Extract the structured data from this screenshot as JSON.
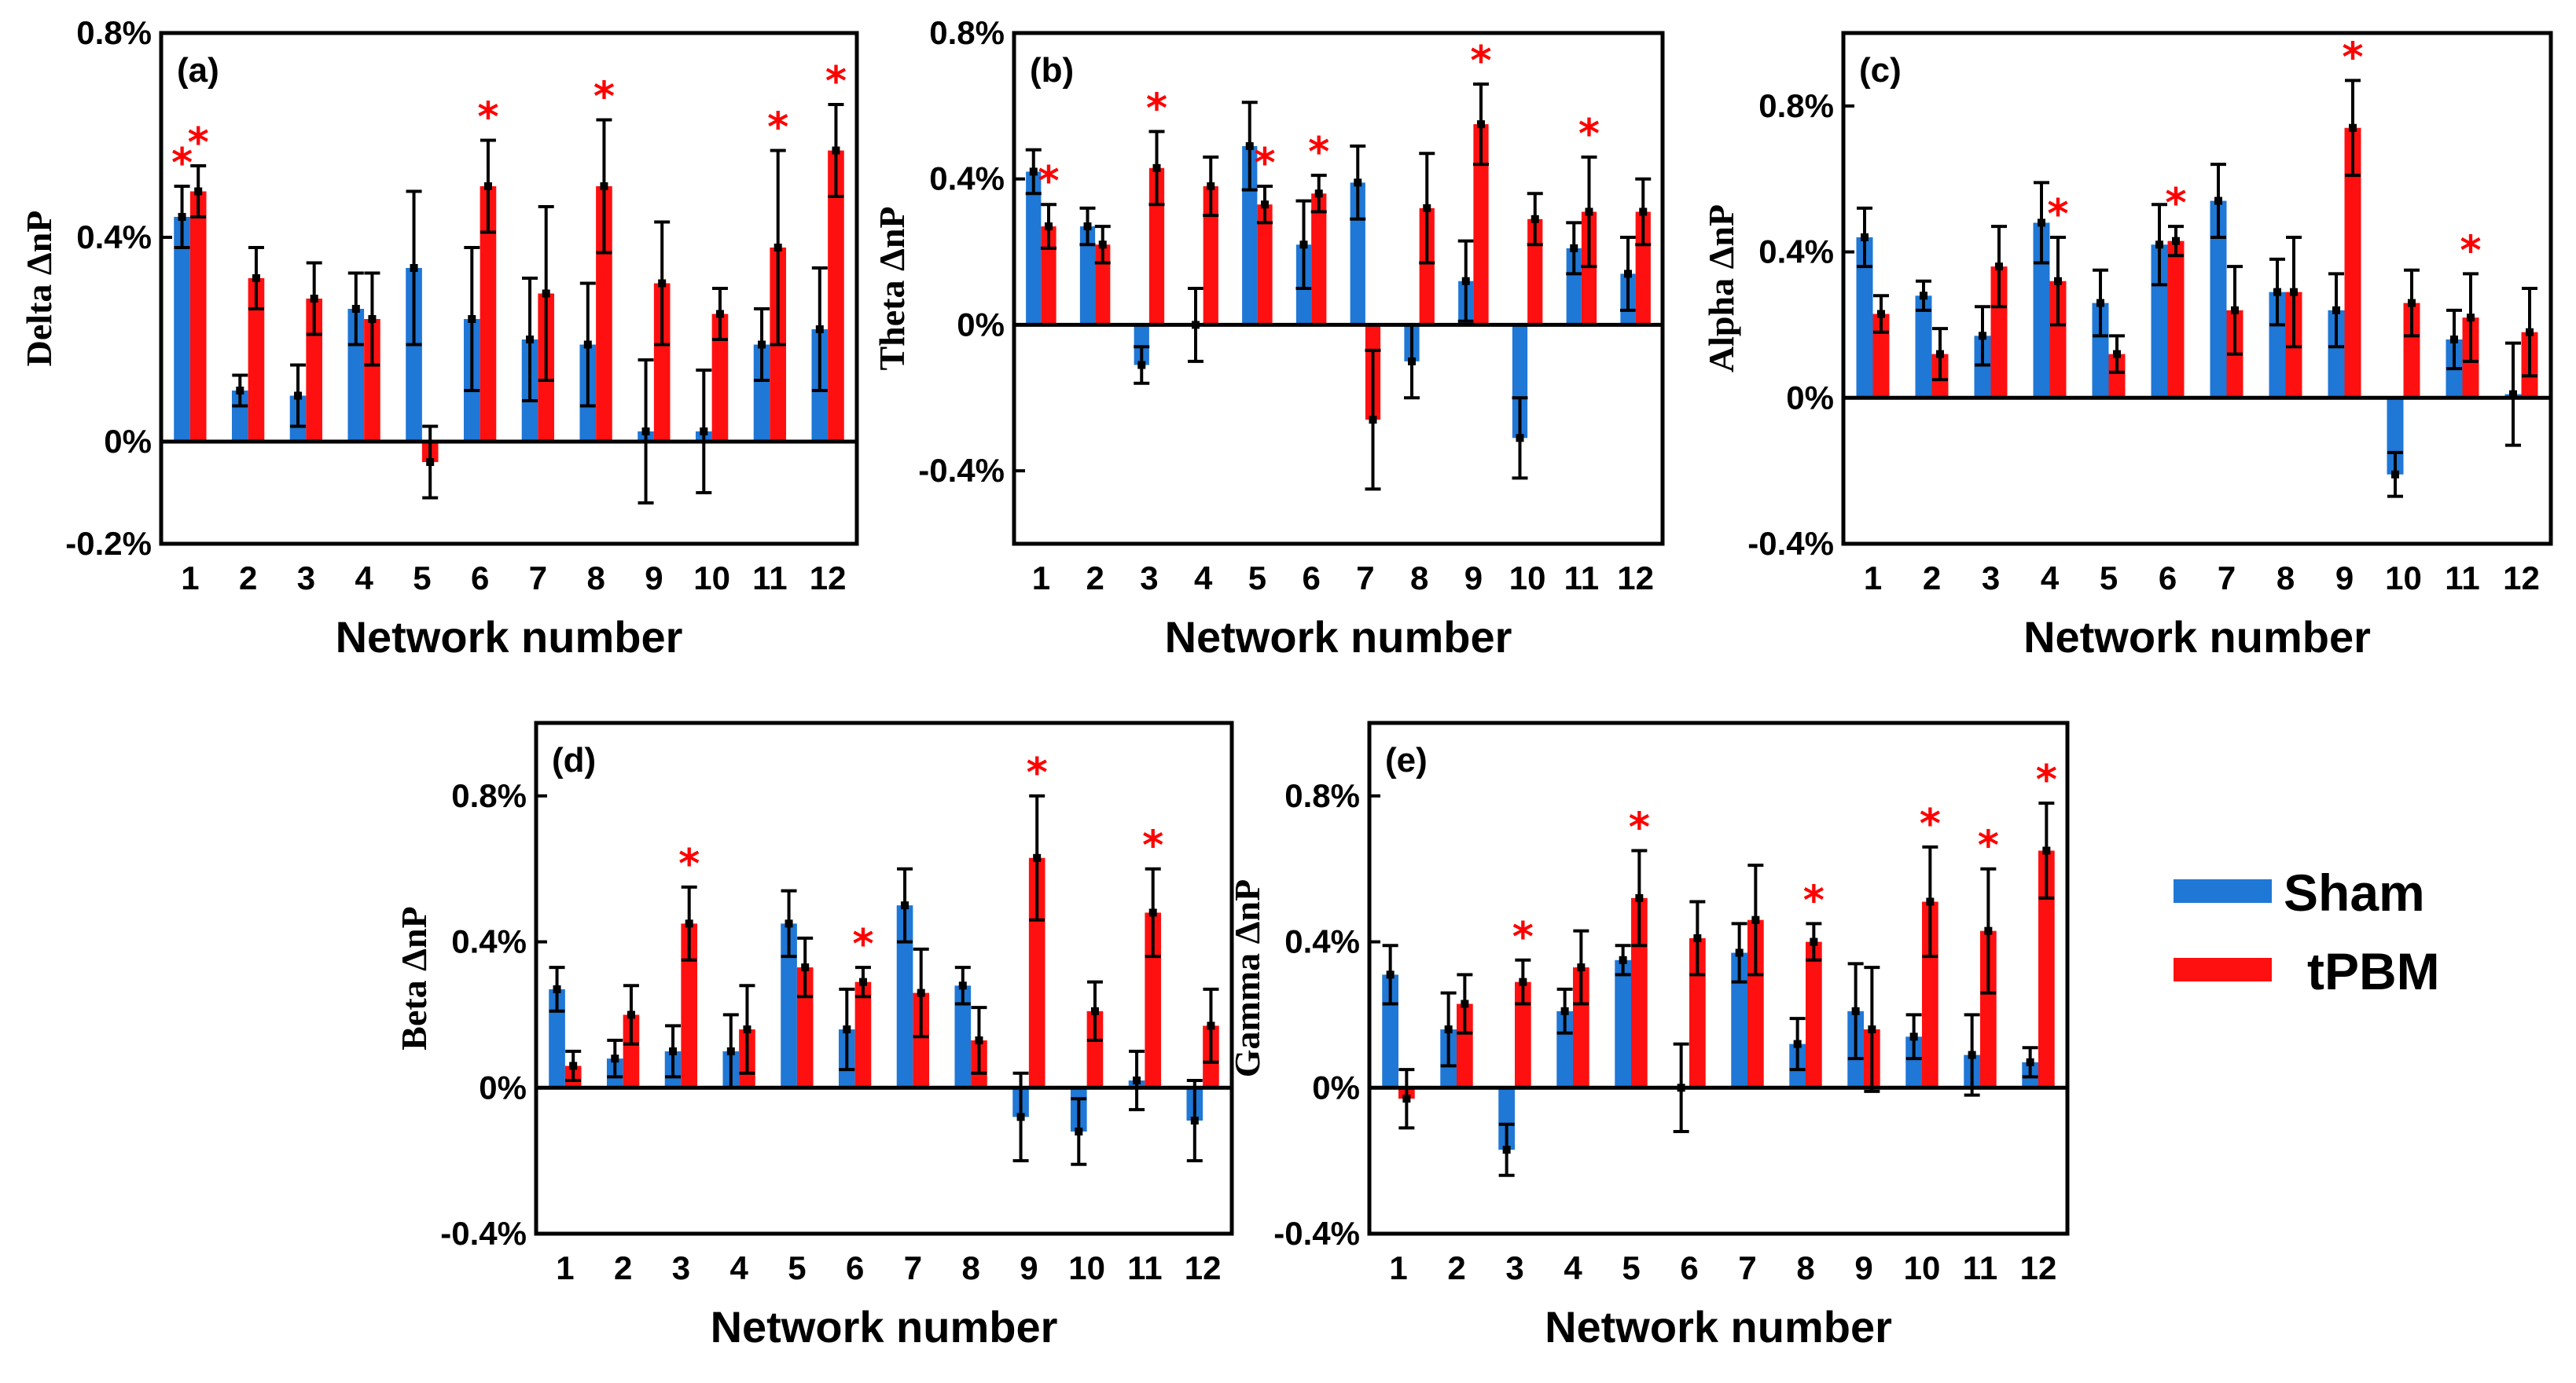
{
  "legend": {
    "items": [
      {
        "label": "Sham",
        "color": "#1f77d6"
      },
      {
        "label": "tPBM",
        "color": "#ff1010"
      }
    ]
  },
  "chart_data": [
    {
      "type": "bar",
      "panel_label": "(a)",
      "xlabel": "Network number",
      "ylabel": "Delta ΔnP",
      "ylim": [
        -0.2,
        0.8
      ],
      "yticks": [
        -0.2,
        0,
        0.4,
        0.8
      ],
      "ytick_labels": [
        "-0.2%",
        "0%",
        "0.4%",
        "0.8%"
      ],
      "categories": [
        "1",
        "2",
        "3",
        "4",
        "5",
        "6",
        "7",
        "8",
        "9",
        "10",
        "11",
        "12"
      ],
      "series": [
        {
          "name": "Sham",
          "values": [
            0.44,
            0.1,
            0.09,
            0.26,
            0.34,
            0.24,
            0.2,
            0.19,
            0.02,
            0.02,
            0.19,
            0.22
          ],
          "errors": [
            0.06,
            0.03,
            0.06,
            0.07,
            0.15,
            0.14,
            0.12,
            0.12,
            0.14,
            0.12,
            0.07,
            0.12
          ]
        },
        {
          "name": "tPBM",
          "values": [
            0.49,
            0.32,
            0.28,
            0.24,
            -0.04,
            0.5,
            0.29,
            0.5,
            0.31,
            0.25,
            0.38,
            0.57
          ],
          "errors": [
            0.05,
            0.06,
            0.07,
            0.09,
            0.07,
            0.09,
            0.17,
            0.13,
            0.12,
            0.05,
            0.19,
            0.09
          ]
        }
      ],
      "significant": [
        1,
        6,
        8,
        11,
        12
      ],
      "significant_both": [
        1
      ]
    },
    {
      "type": "bar",
      "panel_label": "(b)",
      "xlabel": "Network number",
      "ylabel": "Theta ΔnP",
      "ylim": [
        -0.6,
        0.8
      ],
      "yticks": [
        -0.4,
        0,
        0.4,
        0.8
      ],
      "ytick_labels": [
        "-0.4%",
        "0%",
        "0.4%",
        "0.8%"
      ],
      "categories": [
        "1",
        "2",
        "3",
        "4",
        "5",
        "6",
        "7",
        "8",
        "9",
        "10",
        "11",
        "12"
      ],
      "series": [
        {
          "name": "Sham",
          "values": [
            0.42,
            0.27,
            -0.11,
            0.0,
            0.49,
            0.22,
            0.39,
            -0.1,
            0.12,
            -0.31,
            0.21,
            0.14
          ],
          "errors": [
            0.06,
            0.05,
            0.05,
            0.1,
            0.12,
            0.12,
            0.1,
            0.1,
            0.11,
            0.11,
            0.07,
            0.1
          ]
        },
        {
          "name": "tPBM",
          "values": [
            0.27,
            0.22,
            0.43,
            0.38,
            0.33,
            0.36,
            -0.26,
            0.32,
            0.55,
            0.29,
            0.31,
            0.31
          ],
          "errors": [
            0.06,
            0.05,
            0.1,
            0.08,
            0.05,
            0.05,
            0.19,
            0.15,
            0.11,
            0.07,
            0.15,
            0.09
          ]
        }
      ],
      "significant": [
        1,
        3,
        5,
        6,
        9,
        11
      ],
      "significant_both": []
    },
    {
      "type": "bar",
      "panel_label": "(c)",
      "xlabel": "Network number",
      "ylabel": "Alpha ΔnP",
      "ylim": [
        -0.4,
        1.0
      ],
      "yticks": [
        -0.4,
        0,
        0.4,
        0.8
      ],
      "ytick_labels": [
        "-0.4%",
        "0%",
        "0.4%",
        "0.8%"
      ],
      "categories": [
        "1",
        "2",
        "3",
        "4",
        "5",
        "6",
        "7",
        "8",
        "9",
        "10",
        "11",
        "12"
      ],
      "series": [
        {
          "name": "Sham",
          "values": [
            0.44,
            0.28,
            0.17,
            0.48,
            0.26,
            0.42,
            0.54,
            0.29,
            0.24,
            -0.21,
            0.16,
            0.01
          ],
          "errors": [
            0.08,
            0.04,
            0.08,
            0.11,
            0.09,
            0.11,
            0.1,
            0.09,
            0.1,
            0.06,
            0.08,
            0.14
          ]
        },
        {
          "name": "tPBM",
          "values": [
            0.23,
            0.12,
            0.36,
            0.32,
            0.12,
            0.43,
            0.24,
            0.29,
            0.74,
            0.26,
            0.22,
            0.18
          ],
          "errors": [
            0.05,
            0.07,
            0.11,
            0.12,
            0.05,
            0.04,
            0.12,
            0.15,
            0.13,
            0.09,
            0.12,
            0.12
          ]
        }
      ],
      "significant": [
        4,
        6,
        9,
        11
      ],
      "significant_both": []
    },
    {
      "type": "bar",
      "panel_label": "(d)",
      "xlabel": "Network number",
      "ylabel": "Beta ΔnP",
      "ylim": [
        -0.4,
        1.0
      ],
      "yticks": [
        -0.4,
        0,
        0.4,
        0.8
      ],
      "ytick_labels": [
        "-0.4%",
        "0%",
        "0.4%",
        "0.8%"
      ],
      "categories": [
        "1",
        "2",
        "3",
        "4",
        "5",
        "6",
        "7",
        "8",
        "9",
        "10",
        "11",
        "12"
      ],
      "series": [
        {
          "name": "Sham",
          "values": [
            0.27,
            0.08,
            0.1,
            0.1,
            0.45,
            0.16,
            0.5,
            0.28,
            -0.08,
            -0.12,
            0.02,
            -0.09
          ],
          "errors": [
            0.06,
            0.05,
            0.07,
            0.1,
            0.09,
            0.11,
            0.1,
            0.05,
            0.12,
            0.09,
            0.08,
            0.11
          ]
        },
        {
          "name": "tPBM",
          "values": [
            0.06,
            0.2,
            0.45,
            0.16,
            0.33,
            0.29,
            0.26,
            0.13,
            0.63,
            0.21,
            0.48,
            0.17
          ],
          "errors": [
            0.04,
            0.08,
            0.1,
            0.12,
            0.08,
            0.04,
            0.12,
            0.09,
            0.17,
            0.08,
            0.12,
            0.1
          ]
        }
      ],
      "significant": [
        3,
        6,
        9,
        11
      ],
      "significant_both": []
    },
    {
      "type": "bar",
      "panel_label": "(e)",
      "xlabel": "Network number",
      "ylabel": "Gamma ΔnP",
      "ylim": [
        -0.4,
        1.0
      ],
      "yticks": [
        -0.4,
        0,
        0.4,
        0.8
      ],
      "ytick_labels": [
        "-0.4%",
        "0%",
        "0.4%",
        "0.8%"
      ],
      "categories": [
        "1",
        "2",
        "3",
        "4",
        "5",
        "6",
        "7",
        "8",
        "9",
        "10",
        "11",
        "12"
      ],
      "series": [
        {
          "name": "Sham",
          "values": [
            0.31,
            0.16,
            -0.17,
            0.21,
            0.35,
            0.0,
            0.37,
            0.12,
            0.21,
            0.14,
            0.09,
            0.07
          ],
          "errors": [
            0.08,
            0.1,
            0.07,
            0.06,
            0.04,
            0.12,
            0.08,
            0.07,
            0.13,
            0.06,
            0.11,
            0.04
          ]
        },
        {
          "name": "tPBM",
          "values": [
            -0.03,
            0.23,
            0.29,
            0.33,
            0.52,
            0.41,
            0.46,
            0.4,
            0.16,
            0.51,
            0.43,
            0.65
          ],
          "errors": [
            0.08,
            0.08,
            0.06,
            0.1,
            0.13,
            0.1,
            0.15,
            0.05,
            0.17,
            0.15,
            0.17,
            0.13
          ]
        }
      ],
      "significant": [
        3,
        5,
        8,
        10,
        11,
        12
      ],
      "significant_both": []
    }
  ]
}
